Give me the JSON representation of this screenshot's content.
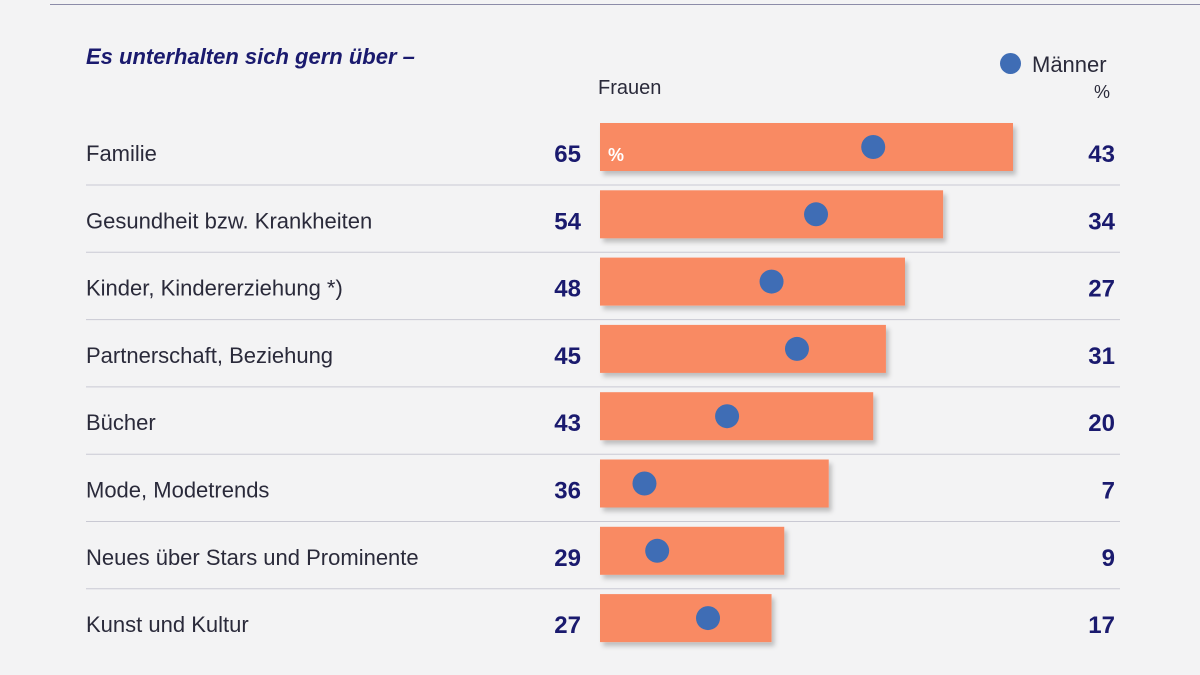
{
  "chart_data": {
    "type": "bar",
    "title": "Es unterhalten sich gern über –",
    "unit": "%",
    "series": [
      {
        "name": "Frauen",
        "values": [
          65,
          54,
          48,
          45,
          43,
          36,
          29,
          27
        ]
      },
      {
        "name": "Männer",
        "values": [
          43,
          34,
          27,
          31,
          20,
          7,
          9,
          17
        ]
      }
    ],
    "categories": [
      "Familie",
      "Gesundheit bzw. Krankheiten",
      "Kinder, Kindererziehung *)",
      "Partnerschaft, Beziehung",
      "Bücher",
      "Mode, Modetrends",
      "Neues über Stars und Prominente",
      "Kunst und Kultur"
    ],
    "xlim": [
      0,
      100
    ],
    "colors": {
      "frauen": "#f98a64",
      "maenner": "#3f6db5",
      "text": "#1a1a6e"
    }
  },
  "labels": {
    "frauen": "Frauen",
    "maenner": "Männer",
    "percent": "%",
    "bar_percent": "%"
  }
}
